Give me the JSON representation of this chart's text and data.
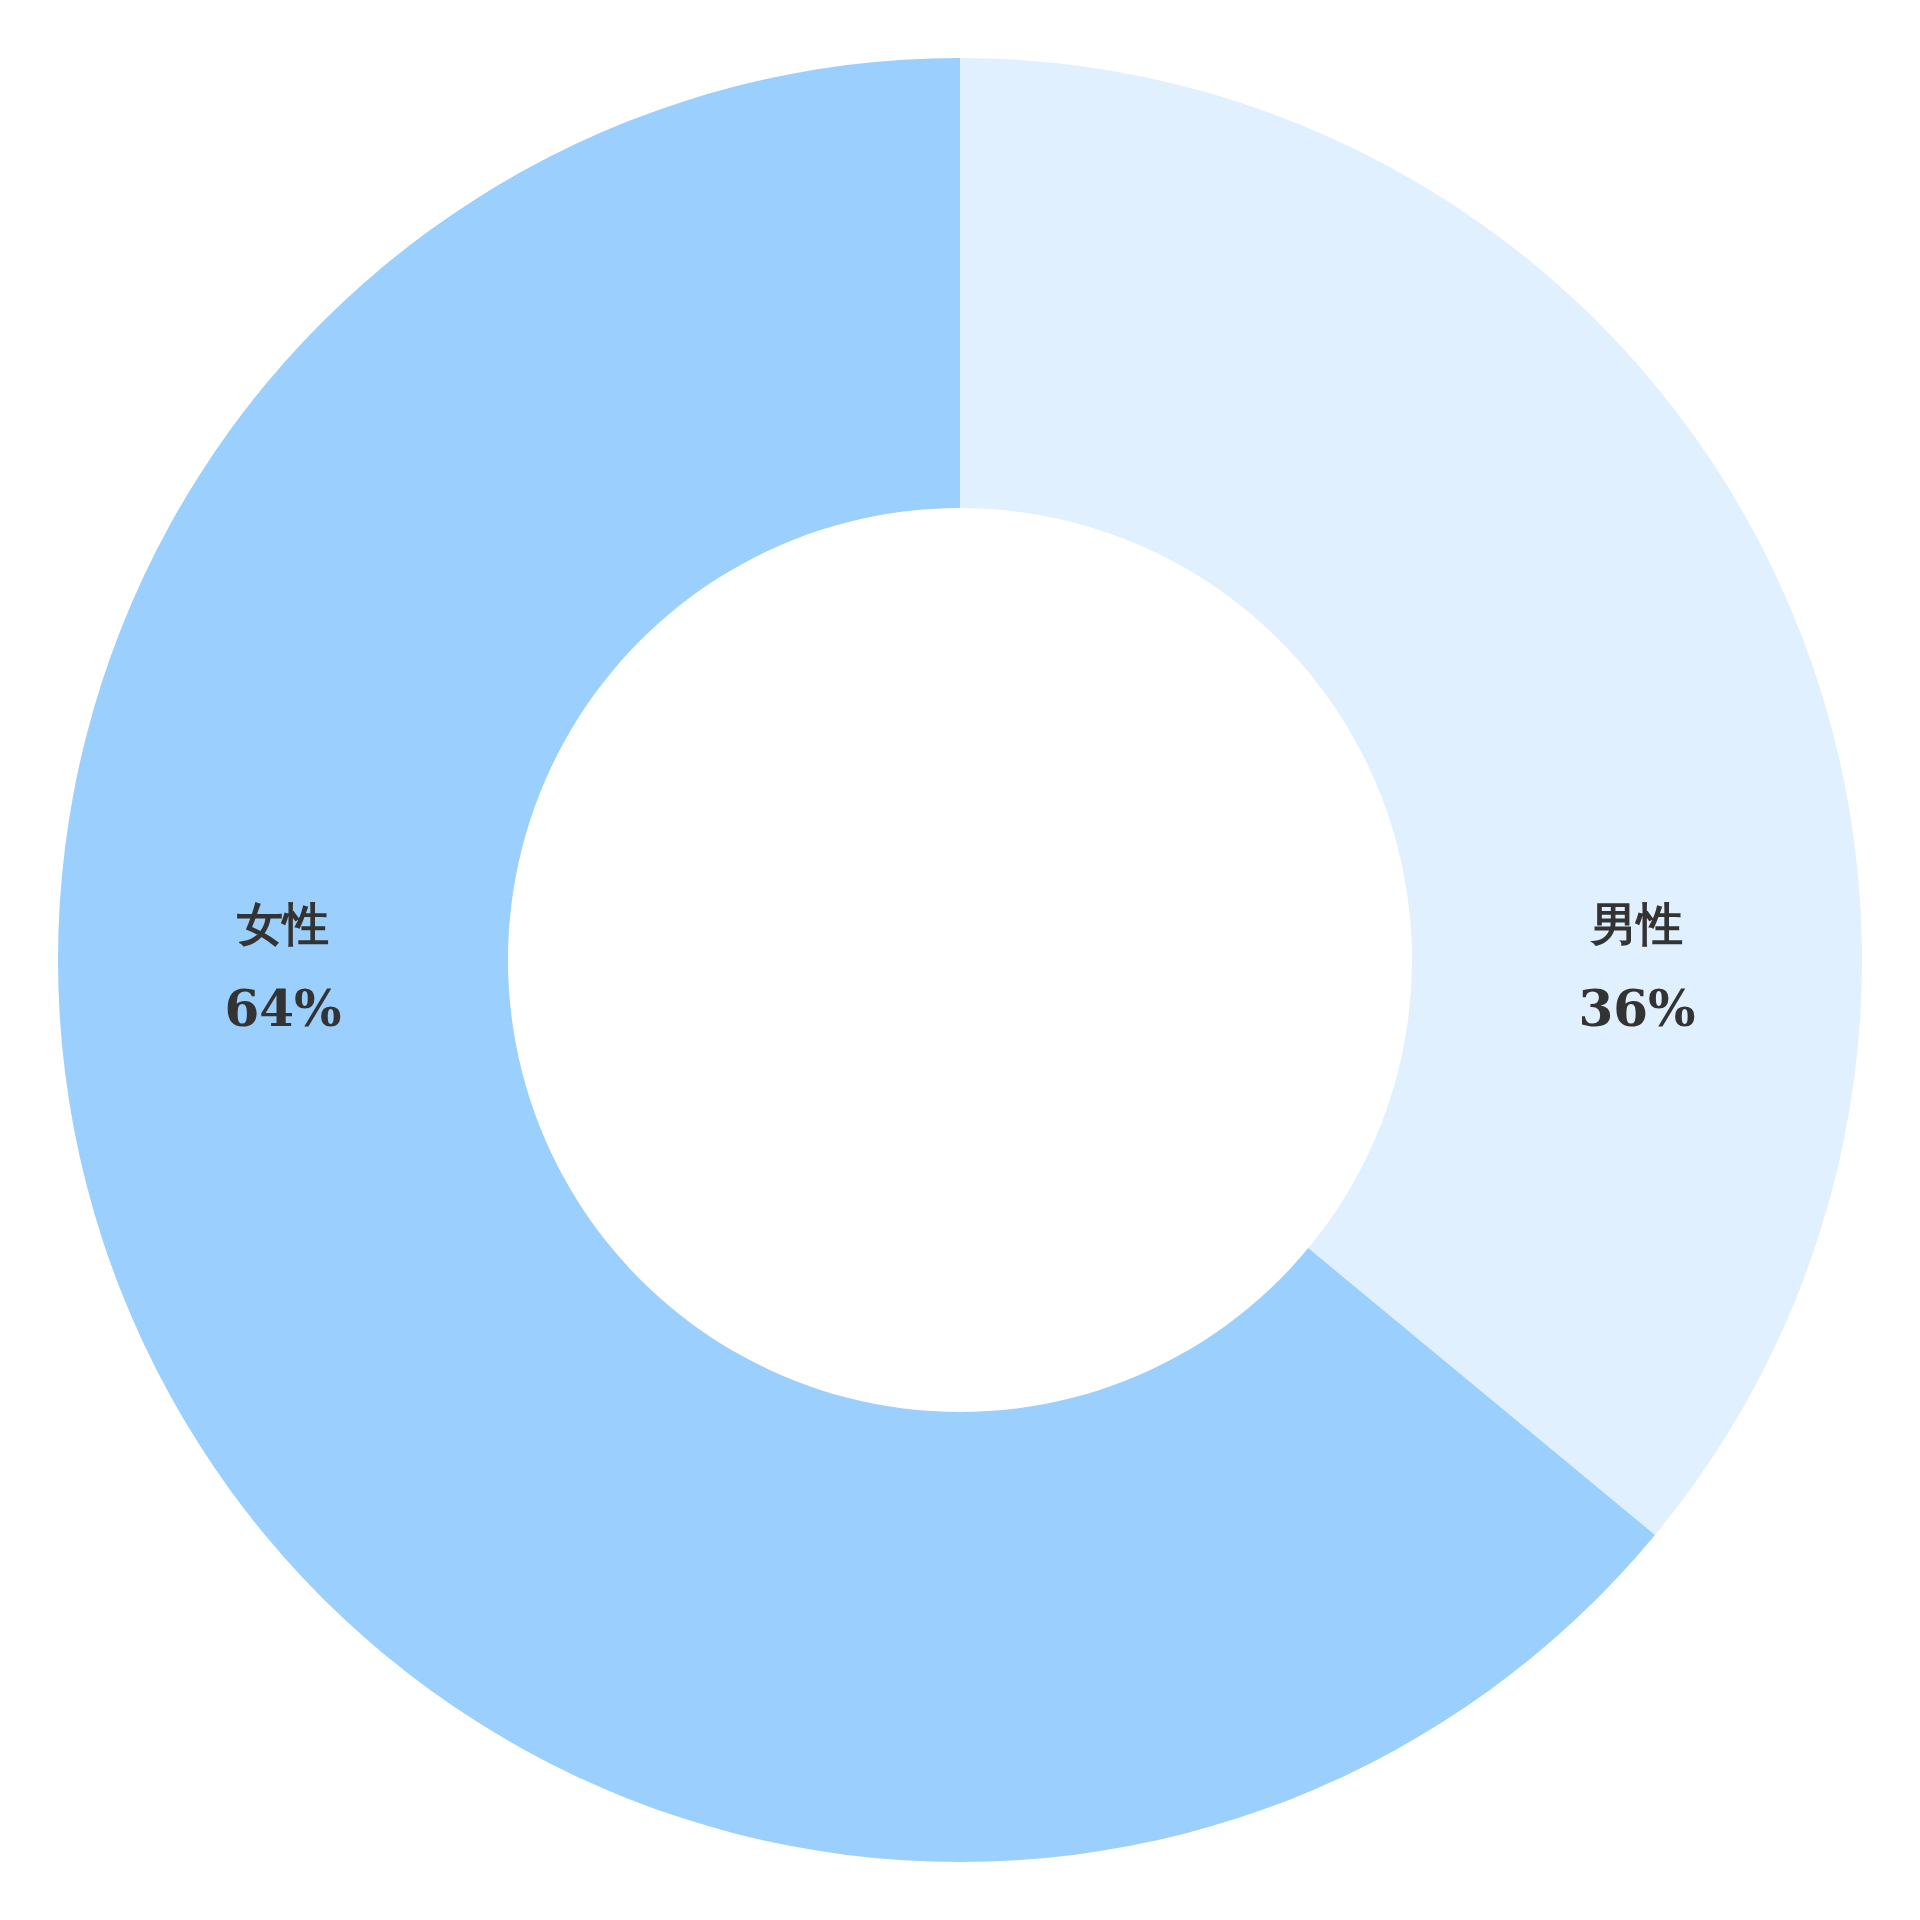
{
  "chart_data": {
    "type": "donut",
    "categories": [
      "男性",
      "女性"
    ],
    "values": [
      36,
      64
    ],
    "value_labels": [
      "36%",
      "64%"
    ],
    "colors": [
      "#e0f0fe",
      "#9bcffd"
    ]
  }
}
